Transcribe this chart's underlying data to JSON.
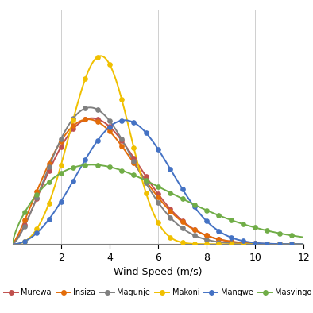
{
  "xlabel": "Wind Speed (m/s)",
  "xlim": [
    0,
    12
  ],
  "ylim": [
    0,
    0.42
  ],
  "x_ticks": [
    2,
    4,
    6,
    8,
    10,
    12
  ],
  "background_color": "#ffffff",
  "grid_color": "#c8c8c8",
  "series": [
    {
      "label": "Murewa",
      "color": "#c0504d",
      "weibull_k": 2.3,
      "weibull_c": 4.2
    },
    {
      "label": "Insiza",
      "color": "#e36c09",
      "weibull_k": 2.2,
      "weibull_c": 4.1
    },
    {
      "label": "Magunje",
      "color": "#808080",
      "weibull_k": 2.4,
      "weibull_c": 4.0
    },
    {
      "label": "Makoni",
      "color": "#f0c000",
      "weibull_k": 3.5,
      "weibull_c": 4.0
    },
    {
      "label": "Mangwe",
      "color": "#4472c4",
      "weibull_k": 3.0,
      "weibull_c": 5.3
    },
    {
      "label": "Masvingo",
      "color": "#70ad47",
      "weibull_k": 1.7,
      "weibull_c": 5.5
    }
  ],
  "marker_x": [
    0.5,
    1.0,
    1.5,
    2.0,
    2.5,
    3.0,
    3.5,
    4.0,
    4.5,
    5.0,
    5.5,
    6.0,
    6.5,
    7.0,
    7.5,
    8.0,
    8.5,
    9.0,
    9.5,
    10.0,
    10.5,
    11.0,
    11.5
  ]
}
